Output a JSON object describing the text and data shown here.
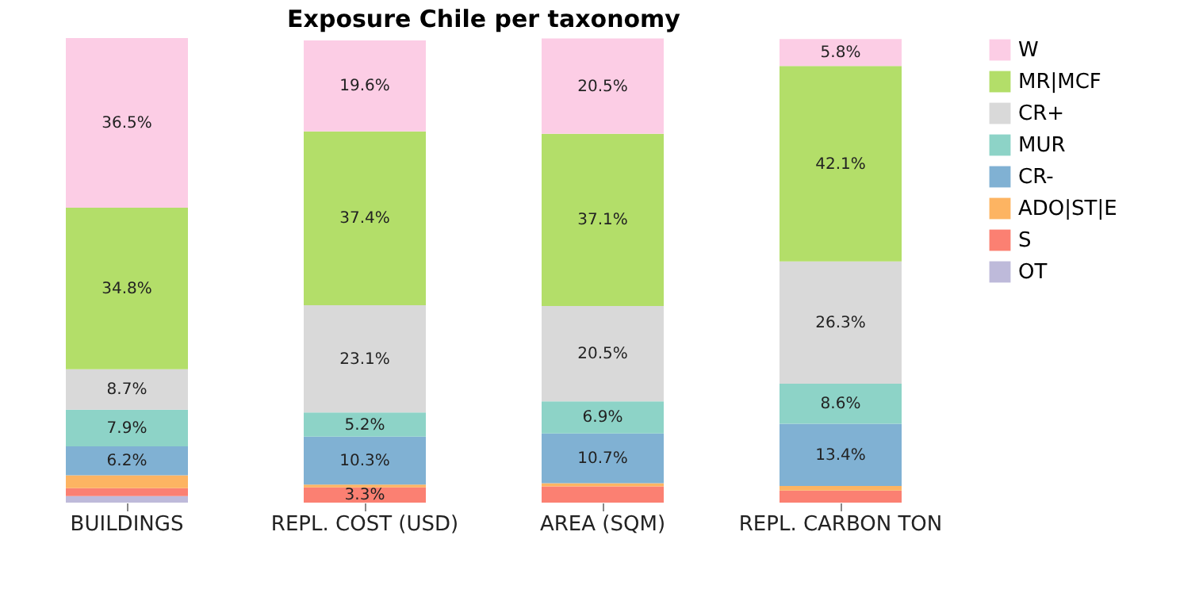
{
  "chart_data": {
    "type": "bar",
    "title": "Exposure Chile per taxonomy",
    "stacked": true,
    "legend": "top right",
    "grid": false,
    "categories": [
      "BUILDINGS",
      "REPL. COST (USD)",
      "AREA (SQM)",
      "REPL. CARBON TON"
    ],
    "series": [
      {
        "name": "OT",
        "color": "#bebada",
        "values": [
          1.4,
          null,
          null,
          null
        ],
        "value_labels": [
          null,
          null,
          null,
          null
        ]
      },
      {
        "name": "S",
        "color": "#fb8072",
        "values": [
          1.7,
          3.3,
          3.5,
          2.6
        ],
        "value_labels": [
          null,
          "3.3%",
          null,
          null
        ]
      },
      {
        "name": "ADO|ST|E",
        "color": "#fdb462",
        "values": [
          2.8,
          0.6,
          0.7,
          1.0
        ],
        "value_labels": [
          null,
          null,
          null,
          null
        ]
      },
      {
        "name": "CR-",
        "color": "#80b1d3",
        "values": [
          6.2,
          10.3,
          10.7,
          13.4
        ],
        "value_labels": [
          "6.2%",
          "10.3%",
          "10.7%",
          "13.4%"
        ]
      },
      {
        "name": "MUR",
        "color": "#8dd3c7",
        "values": [
          7.9,
          5.2,
          6.9,
          8.6
        ],
        "value_labels": [
          "7.9%",
          "5.2%",
          "6.9%",
          "8.6%"
        ]
      },
      {
        "name": "CR+",
        "color": "#d9d9d9",
        "values": [
          8.7,
          23.1,
          20.5,
          26.3
        ],
        "value_labels": [
          "8.7%",
          "23.1%",
          "20.5%",
          "26.3%"
        ]
      },
      {
        "name": "MR|MCF",
        "color": "#b3de69",
        "values": [
          34.8,
          37.4,
          37.1,
          42.1
        ],
        "value_labels": [
          "34.8%",
          "37.4%",
          "37.1%",
          "42.1%"
        ]
      },
      {
        "name": "W",
        "color": "#fccde5",
        "values": [
          36.5,
          19.6,
          20.5,
          5.8
        ],
        "value_labels": [
          "36.5%",
          "19.6%",
          "20.5%",
          "5.8%"
        ]
      }
    ]
  }
}
